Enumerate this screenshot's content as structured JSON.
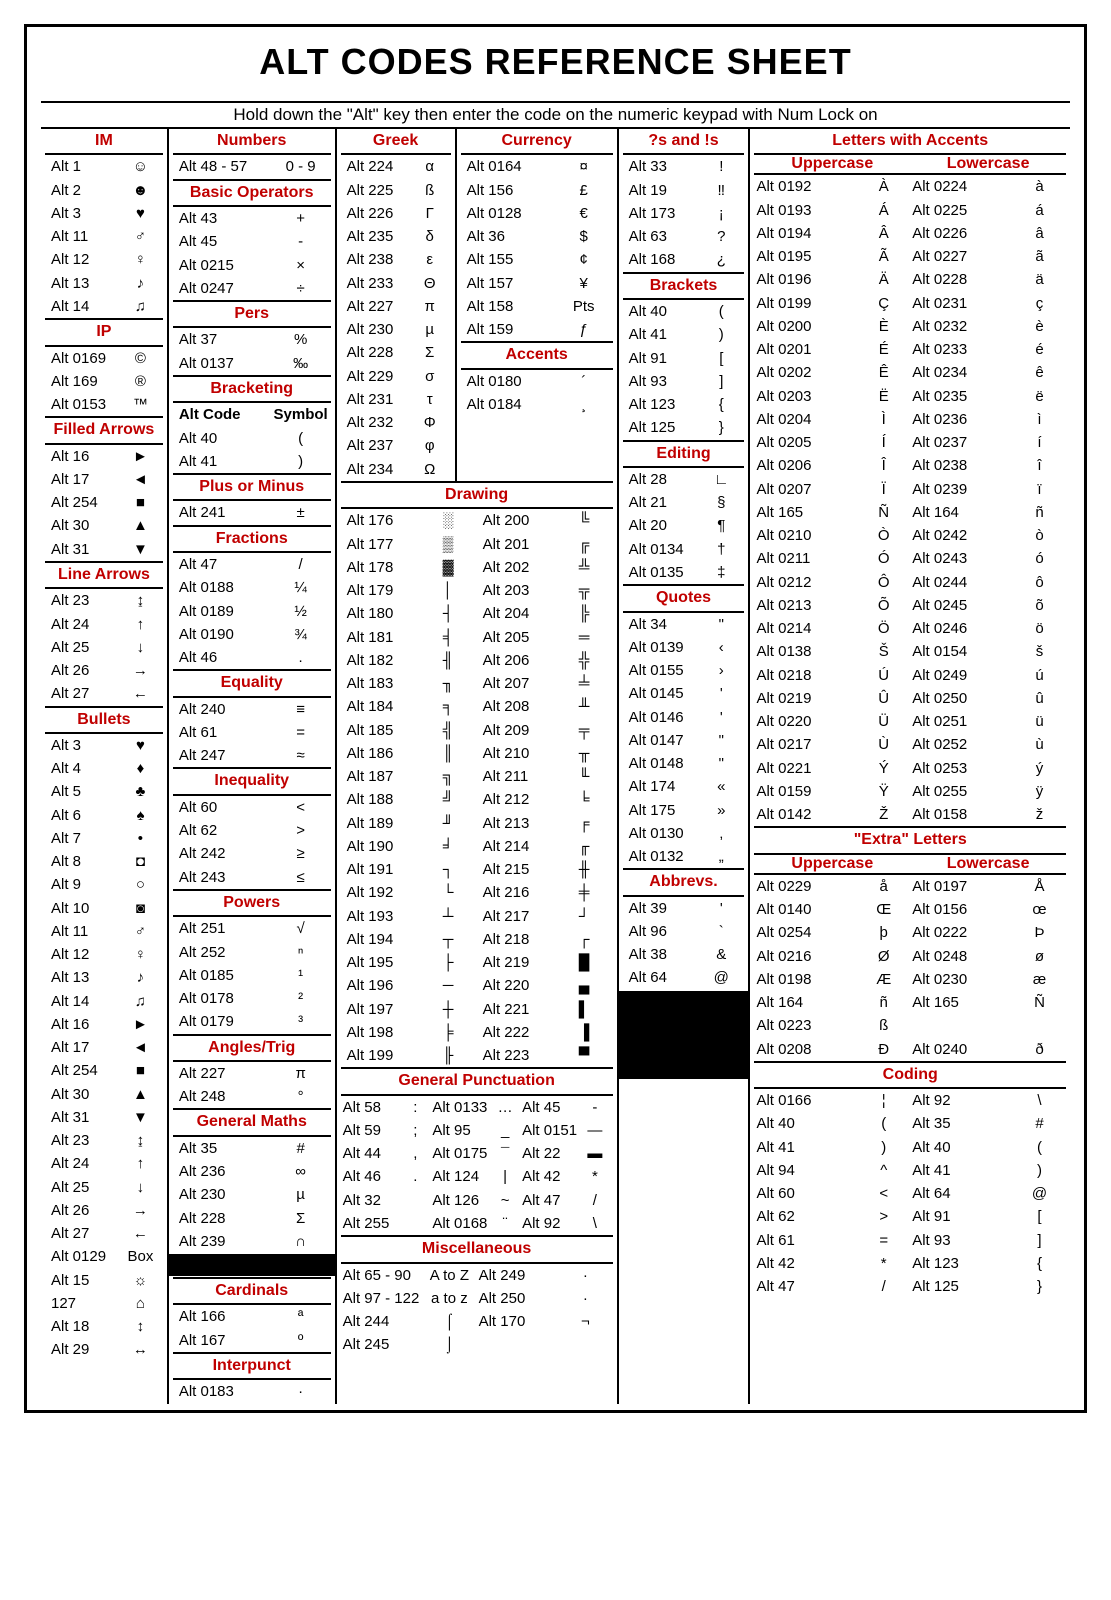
{
  "title": "ALT CODES REFERENCE SHEET",
  "instruction": "Hold down the \"Alt\" key then enter the code on the numeric keypad with Num Lock on",
  "colors": {
    "heading": "#c00000",
    "border": "#000000",
    "bg": "#ffffff"
  },
  "sections": {
    "im": {
      "title": "IM",
      "rows": [
        [
          "Alt 1",
          "☺"
        ],
        [
          "Alt 2",
          "☻"
        ],
        [
          "Alt 3",
          "♥"
        ],
        [
          "Alt 11",
          "♂"
        ],
        [
          "Alt 12",
          "♀"
        ],
        [
          "Alt 13",
          "♪"
        ],
        [
          "Alt 14",
          "♫"
        ]
      ]
    },
    "ip": {
      "title": "IP",
      "rows": [
        [
          "Alt 0169",
          "©"
        ],
        [
          "Alt 169",
          "®"
        ],
        [
          "Alt 0153",
          "™"
        ]
      ]
    },
    "filled_arrows": {
      "title": "Filled Arrows",
      "rows": [
        [
          "Alt 16",
          "►"
        ],
        [
          "Alt 17",
          "◄"
        ],
        [
          "Alt 254",
          "■"
        ],
        [
          "Alt 30",
          "▲"
        ],
        [
          "Alt 31",
          "▼"
        ]
      ]
    },
    "line_arrows": {
      "title": "Line Arrows",
      "rows": [
        [
          "Alt 23",
          "↨"
        ],
        [
          "Alt 24",
          "↑"
        ],
        [
          "Alt 25",
          "↓"
        ],
        [
          "Alt 26",
          "→"
        ],
        [
          "Alt 27",
          "←"
        ]
      ]
    },
    "bullets": {
      "title": "Bullets",
      "rows": [
        [
          "Alt 3",
          "♥"
        ],
        [
          "Alt 4",
          "♦"
        ],
        [
          "Alt 5",
          "♣"
        ],
        [
          "Alt 6",
          "♠"
        ],
        [
          "Alt 7",
          "•"
        ],
        [
          "Alt 8",
          "◘"
        ],
        [
          "Alt 9",
          "○"
        ],
        [
          "Alt 10",
          "◙"
        ],
        [
          "Alt 11",
          "♂"
        ],
        [
          "Alt 12",
          "♀"
        ],
        [
          "Alt 13",
          "♪"
        ],
        [
          "Alt 14",
          "♫"
        ],
        [
          "Alt 16",
          "►"
        ],
        [
          "Alt 17",
          "◄"
        ],
        [
          "Alt 254",
          "■"
        ],
        [
          "Alt 30",
          "▲"
        ],
        [
          "Alt 31",
          "▼"
        ],
        [
          "Alt 23",
          "↨"
        ],
        [
          "Alt 24",
          "↑"
        ],
        [
          "Alt 25",
          "↓"
        ],
        [
          "Alt 26",
          "→"
        ],
        [
          "Alt 27",
          "←"
        ],
        [
          "Alt 0129",
          "Box"
        ],
        [
          "Alt 15",
          "☼"
        ],
        [
          "127",
          "⌂"
        ],
        [
          "Alt 18",
          "↕"
        ],
        [
          "Alt 29",
          "↔"
        ]
      ]
    },
    "numbers": {
      "title": "Numbers",
      "rows": [
        [
          "Alt 48 - 57",
          "0 - 9"
        ]
      ]
    },
    "basic_ops": {
      "title": "Basic Operators",
      "rows": [
        [
          "Alt 43",
          "+"
        ],
        [
          "Alt 45",
          "-"
        ],
        [
          "Alt 0215",
          "×"
        ],
        [
          "Alt 0247",
          "÷"
        ]
      ]
    },
    "pers": {
      "title": "Pers",
      "rows": [
        [
          "Alt 37",
          "%"
        ],
        [
          "Alt 0137",
          "‰"
        ]
      ]
    },
    "bracketing": {
      "title": "Bracketing",
      "header": [
        "Alt Code",
        "Symbol"
      ],
      "rows": [
        [
          "Alt 40",
          "("
        ],
        [
          "Alt 41",
          ")"
        ]
      ]
    },
    "plus_minus": {
      "title": "Plus or Minus",
      "rows": [
        [
          "Alt 241",
          "±"
        ]
      ]
    },
    "fractions": {
      "title": "Fractions",
      "rows": [
        [
          "Alt 47",
          "/"
        ],
        [
          "Alt 0188",
          "¼"
        ],
        [
          "Alt 0189",
          "½"
        ],
        [
          "Alt 0190",
          "¾"
        ],
        [
          "Alt 46",
          "."
        ]
      ]
    },
    "equality": {
      "title": "Equality",
      "rows": [
        [
          "Alt 240",
          "≡"
        ],
        [
          "Alt 61",
          "="
        ],
        [
          "Alt 247",
          "≈"
        ]
      ]
    },
    "inequality": {
      "title": "Inequality",
      "rows": [
        [
          "Alt 60",
          "<"
        ],
        [
          "Alt 62",
          ">"
        ],
        [
          "Alt 242",
          "≥"
        ],
        [
          "Alt 243",
          "≤"
        ]
      ]
    },
    "powers": {
      "title": "Powers",
      "rows": [
        [
          "Alt 251",
          "√"
        ],
        [
          "Alt 252",
          "ⁿ"
        ],
        [
          "Alt 0185",
          "¹"
        ],
        [
          "Alt 0178",
          "²"
        ],
        [
          "Alt 0179",
          "³"
        ]
      ]
    },
    "angles": {
      "title": "Angles/Trig",
      "rows": [
        [
          "Alt 227",
          "π"
        ],
        [
          "Alt 248",
          "°"
        ]
      ]
    },
    "gen_maths": {
      "title": "General Maths",
      "rows": [
        [
          "Alt 35",
          "#"
        ],
        [
          "Alt 236",
          "∞"
        ],
        [
          "Alt 230",
          "µ"
        ],
        [
          "Alt 228",
          "Σ"
        ],
        [
          "Alt 239",
          "∩"
        ]
      ]
    },
    "cardinals": {
      "title": "Cardinals",
      "rows": [
        [
          "Alt 166",
          "ª"
        ],
        [
          "Alt 167",
          "º"
        ]
      ]
    },
    "interpunct": {
      "title": "Interpunct",
      "rows": [
        [
          "Alt 0183",
          "·"
        ]
      ]
    },
    "greek": {
      "title": "Greek",
      "rows": [
        [
          "Alt 224",
          "α"
        ],
        [
          "Alt 225",
          "ß"
        ],
        [
          "Alt 226",
          "Γ"
        ],
        [
          "Alt 235",
          "δ"
        ],
        [
          "Alt 238",
          "ε"
        ],
        [
          "Alt 233",
          "Θ"
        ],
        [
          "Alt 227",
          "π"
        ],
        [
          "Alt 230",
          "µ"
        ],
        [
          "Alt 228",
          "Σ"
        ],
        [
          "Alt 229",
          "σ"
        ],
        [
          "Alt 231",
          "τ"
        ],
        [
          "Alt 232",
          "Φ"
        ],
        [
          "Alt 237",
          "φ"
        ],
        [
          "Alt 234",
          "Ω"
        ]
      ]
    },
    "currency": {
      "title": "Currency",
      "rows": [
        [
          "Alt 0164",
          "¤"
        ],
        [
          "Alt 156",
          "£"
        ],
        [
          "Alt 0128",
          "€"
        ],
        [
          "Alt 36",
          "$"
        ],
        [
          "Alt 155",
          "¢"
        ],
        [
          "Alt 157",
          "¥"
        ],
        [
          "Alt 158",
          "Pts"
        ],
        [
          "Alt 159",
          "ƒ"
        ]
      ]
    },
    "accents": {
      "title": "Accents",
      "rows": [
        [
          "Alt 0180",
          "´"
        ],
        [
          "Alt 0184",
          "¸"
        ]
      ]
    },
    "drawing": {
      "title": "Drawing",
      "left": [
        [
          "Alt 176",
          "░"
        ],
        [
          "Alt 177",
          "▒"
        ],
        [
          "Alt 178",
          "▓"
        ],
        [
          "Alt 179",
          "│"
        ],
        [
          "Alt 180",
          "┤"
        ],
        [
          "Alt 181",
          "╡"
        ],
        [
          "Alt 182",
          "╢"
        ],
        [
          "Alt 183",
          "╖"
        ],
        [
          "Alt 184",
          "╕"
        ],
        [
          "Alt 185",
          "╣"
        ],
        [
          "Alt 186",
          "║"
        ],
        [
          "Alt 187",
          "╗"
        ],
        [
          "Alt 188",
          "╝"
        ],
        [
          "Alt 189",
          "╜"
        ],
        [
          "Alt 190",
          "╛"
        ],
        [
          "Alt 191",
          "┐"
        ],
        [
          "Alt 192",
          "└"
        ],
        [
          "Alt 193",
          "┴"
        ],
        [
          "Alt 194",
          "┬"
        ],
        [
          "Alt 195",
          "├"
        ],
        [
          "Alt 196",
          "─"
        ],
        [
          "Alt 197",
          "┼"
        ],
        [
          "Alt 198",
          "╞"
        ],
        [
          "Alt 199",
          "╟"
        ]
      ],
      "right": [
        [
          "Alt 200",
          "╚"
        ],
        [
          "Alt 201",
          "╔"
        ],
        [
          "Alt 202",
          "╩"
        ],
        [
          "Alt 203",
          "╦"
        ],
        [
          "Alt 204",
          "╠"
        ],
        [
          "Alt 205",
          "═"
        ],
        [
          "Alt 206",
          "╬"
        ],
        [
          "Alt 207",
          "╧"
        ],
        [
          "Alt 208",
          "╨"
        ],
        [
          "Alt 209",
          "╤"
        ],
        [
          "Alt 210",
          "╥"
        ],
        [
          "Alt 211",
          "╙"
        ],
        [
          "Alt 212",
          "╘"
        ],
        [
          "Alt 213",
          "╒"
        ],
        [
          "Alt 214",
          "╓"
        ],
        [
          "Alt 215",
          "╫"
        ],
        [
          "Alt 216",
          "╪"
        ],
        [
          "Alt 217",
          "┘"
        ],
        [
          "Alt 218",
          "┌"
        ],
        [
          "Alt 219",
          "█"
        ],
        [
          "Alt 220",
          "▄"
        ],
        [
          "Alt 221",
          "▌"
        ],
        [
          "Alt 222",
          "▐"
        ],
        [
          "Alt 223",
          "▀"
        ]
      ]
    },
    "gen_punct": {
      "title": "General Punctuation",
      "cols": [
        [
          [
            "Alt 58",
            ":"
          ],
          [
            "Alt 59",
            ";"
          ],
          [
            "Alt 44",
            ","
          ],
          [
            "Alt 46",
            "."
          ],
          [
            "Alt 32",
            " "
          ],
          [
            "Alt 255",
            " "
          ]
        ],
        [
          [
            "Alt 0133",
            "…"
          ],
          [
            "Alt 95",
            "_"
          ],
          [
            "Alt 0175",
            "¯"
          ],
          [
            "Alt 124",
            "|"
          ],
          [
            "Alt 126",
            "~"
          ],
          [
            "Alt 0168",
            "¨"
          ]
        ],
        [
          [
            "Alt 45",
            "-"
          ],
          [
            "Alt 0151",
            "—"
          ],
          [
            "Alt 22",
            "▬"
          ],
          [
            "Alt 42",
            "*"
          ],
          [
            "Alt 47",
            "/"
          ],
          [
            "Alt 92",
            "\\"
          ]
        ]
      ]
    },
    "misc": {
      "title": "Miscellaneous",
      "rows": [
        [
          "Alt 65 - 90",
          "A to Z",
          "Alt 249",
          "·"
        ],
        [
          "Alt 97 - 122",
          "a to z",
          "Alt 250",
          "·"
        ],
        [
          "Alt 244",
          "⌠",
          "Alt 170",
          "¬"
        ],
        [
          "Alt 245",
          "⌡",
          "",
          ""
        ]
      ]
    },
    "qs_bangs": {
      "title": "?s and !s",
      "rows": [
        [
          "Alt 33",
          "!"
        ],
        [
          "Alt 19",
          "‼"
        ],
        [
          "Alt 173",
          "¡"
        ],
        [
          "Alt 63",
          "?"
        ],
        [
          "Alt 168",
          "¿"
        ]
      ]
    },
    "brackets": {
      "title": "Brackets",
      "rows": [
        [
          "Alt 40",
          "("
        ],
        [
          "Alt 41",
          ")"
        ],
        [
          "Alt 91",
          "["
        ],
        [
          "Alt 93",
          "]"
        ],
        [
          "Alt 123",
          "{"
        ],
        [
          "Alt 125",
          "}"
        ]
      ]
    },
    "editing": {
      "title": "Editing",
      "rows": [
        [
          "Alt 28",
          "∟"
        ],
        [
          "Alt 21",
          "§"
        ],
        [
          "Alt 20",
          "¶"
        ],
        [
          "Alt 0134",
          "†"
        ],
        [
          "Alt 0135",
          "‡"
        ]
      ]
    },
    "quotes": {
      "title": "Quotes",
      "rows": [
        [
          "Alt 34",
          "\""
        ],
        [
          "Alt 0139",
          "‹"
        ],
        [
          "Alt 0155",
          "›"
        ],
        [
          "Alt 0145",
          "'"
        ],
        [
          "Alt 0146",
          "'"
        ],
        [
          "Alt 0147",
          "\""
        ],
        [
          "Alt 0148",
          "\""
        ],
        [
          "Alt 174",
          "«"
        ],
        [
          "Alt 175",
          "»"
        ],
        [
          "Alt 0130",
          "‚"
        ],
        [
          "Alt 0132",
          "„"
        ]
      ]
    },
    "abbrevs": {
      "title": "Abbrevs.",
      "rows": [
        [
          "Alt 39",
          "'"
        ],
        [
          "Alt 96",
          "`"
        ],
        [
          "Alt 38",
          "&"
        ],
        [
          "Alt 64",
          "@"
        ]
      ]
    },
    "letters_accents": {
      "title": "Letters with Accents",
      "sub": [
        "Uppercase",
        "Lowercase"
      ],
      "rows": [
        [
          "Alt 0192",
          "À",
          "Alt 0224",
          "à"
        ],
        [
          "Alt 0193",
          "Á",
          "Alt 0225",
          "á"
        ],
        [
          "Alt 0194",
          "Â",
          "Alt 0226",
          "â"
        ],
        [
          "Alt 0195",
          "Ã",
          "Alt 0227",
          "ã"
        ],
        [
          "Alt 0196",
          "Ä",
          "Alt 0228",
          "ä"
        ],
        [
          "Alt 0199",
          "Ç",
          "Alt 0231",
          "ç"
        ],
        [
          "Alt 0200",
          "È",
          "Alt 0232",
          "è"
        ],
        [
          "Alt 0201",
          "É",
          "Alt 0233",
          "é"
        ],
        [
          "Alt 0202",
          "Ê",
          "Alt 0234",
          "ê"
        ],
        [
          "Alt 0203",
          "Ë",
          "Alt 0235",
          "ë"
        ],
        [
          "Alt 0204",
          "Ì",
          "Alt 0236",
          "ì"
        ],
        [
          "Alt 0205",
          "Í",
          "Alt 0237",
          "í"
        ],
        [
          "Alt 0206",
          "Î",
          "Alt 0238",
          "î"
        ],
        [
          "Alt 0207",
          "Ï",
          "Alt 0239",
          "ï"
        ],
        [
          "Alt 165",
          "Ñ",
          "Alt 164",
          "ñ"
        ],
        [
          "Alt 0210",
          "Ò",
          "Alt 0242",
          "ò"
        ],
        [
          "Alt 0211",
          "Ó",
          "Alt 0243",
          "ó"
        ],
        [
          "Alt 0212",
          "Ô",
          "Alt 0244",
          "ô"
        ],
        [
          "Alt 0213",
          "Õ",
          "Alt 0245",
          "õ"
        ],
        [
          "Alt 0214",
          "Ö",
          "Alt 0246",
          "ö"
        ],
        [
          "Alt 0138",
          "Š",
          "Alt 0154",
          "š"
        ],
        [
          "Alt 0218",
          "Ú",
          "Alt 0249",
          "ú"
        ],
        [
          "Alt 0219",
          "Û",
          "Alt 0250",
          "û"
        ],
        [
          "Alt 0220",
          "Ü",
          "Alt 0251",
          "ü"
        ],
        [
          "Alt 0217",
          "Ù",
          "Alt 0252",
          "ù"
        ],
        [
          "Alt 0221",
          "Ý",
          "Alt 0253",
          "ý"
        ],
        [
          "Alt 0159",
          "Ÿ",
          "Alt 0255",
          "ÿ"
        ],
        [
          "Alt 0142",
          "Ž",
          "Alt 0158",
          "ž"
        ]
      ]
    },
    "extra_letters": {
      "title": "\"Extra\" Letters",
      "sub": [
        "Uppercase",
        "Lowercase"
      ],
      "rows": [
        [
          "Alt 0229",
          "å",
          "Alt 0197",
          "Å"
        ],
        [
          "Alt 0140",
          "Œ",
          "Alt 0156",
          "œ"
        ],
        [
          "Alt 0254",
          "þ",
          "Alt 0222",
          "Þ"
        ],
        [
          "Alt 0216",
          "Ø",
          "Alt 0248",
          "ø"
        ],
        [
          "Alt 0198",
          "Æ",
          "Alt 0230",
          "æ"
        ],
        [
          "Alt 164",
          "ñ",
          "Alt 165",
          "Ñ"
        ],
        [
          "Alt 0223",
          "ß",
          "",
          ""
        ],
        [
          "Alt 0208",
          "Đ",
          "Alt 0240",
          "ð"
        ]
      ]
    },
    "coding": {
      "title": "Coding",
      "rows": [
        [
          "Alt 0166",
          "¦",
          "Alt 92",
          "\\"
        ],
        [
          "Alt 40",
          "(",
          "Alt 35",
          "#"
        ],
        [
          "Alt 41",
          ")",
          "Alt 40",
          "("
        ],
        [
          "Alt 94",
          "^",
          "Alt 41",
          ")"
        ],
        [
          "Alt 60",
          "<",
          "Alt 64",
          "@"
        ],
        [
          "Alt 62",
          ">",
          "Alt 91",
          "["
        ],
        [
          "Alt 61",
          "=",
          "Alt 93",
          "]"
        ],
        [
          "Alt 42",
          "*",
          "Alt 123",
          "{"
        ],
        [
          "Alt 47",
          "/",
          "Alt 125",
          "}"
        ]
      ]
    }
  }
}
